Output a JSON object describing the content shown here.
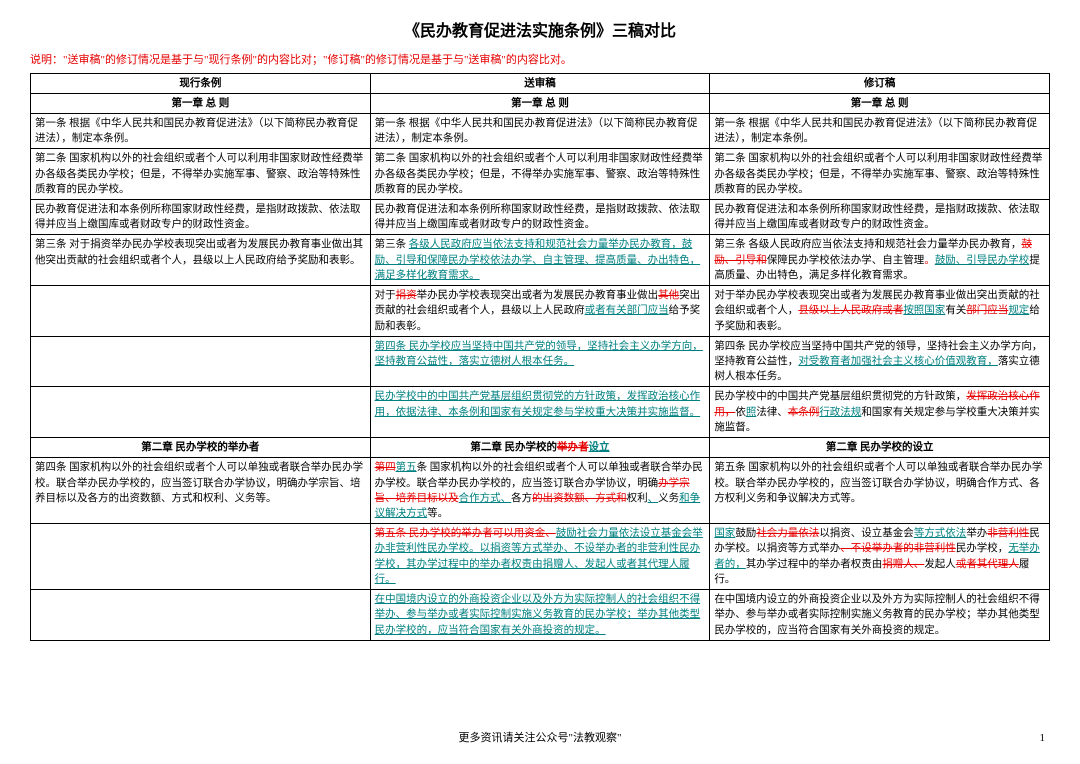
{
  "title": "《民办教育促进法实施条例》三稿对比",
  "note": "说明：\"送审稿\"的修订情况是基于与\"现行条例\"的内容比对；\"修订稿\"的修订情况是基于与\"送审稿\"的内容比对。",
  "headers": {
    "col1": "现行条例",
    "col2": "送审稿",
    "col3": "修订稿"
  },
  "chapter1": "第一章 总 则",
  "rows": {
    "r1c1": "第一条 根据《中华人民共和国民办教育促进法》（以下简称民办教育促进法），制定本条例。",
    "r1c2": "第一条 根据《中华人民共和国民办教育促进法》（以下简称民办教育促进法），制定本条例。",
    "r1c3": "第一条 根据《中华人民共和国民办教育促进法》（以下简称民办教育促进法），制定本条例。",
    "r2c1": "第二条 国家机构以外的社会组织或者个人可以利用非国家财政性经费举办各级各类民办学校；但是，不得举办实施军事、警察、政治等特殊性质教育的民办学校。",
    "r2c2": "第二条 国家机构以外的社会组织或者个人可以利用非国家财政性经费举办各级各类民办学校；但是，不得举办实施军事、警察、政治等特殊性质教育的民办学校。",
    "r2c3": "第二条 国家机构以外的社会组织或者个人可以利用非国家财政性经费举办各级各类民办学校；但是，不得举办实施军事、警察、政治等特殊性质教育的民办学校。",
    "r3c1": "民办教育促进法和本条例所称国家财政性经费，是指财政拨款、依法取得并应当上缴国库或者财政专户的财政性资金。",
    "r3c2": "民办教育促进法和本条例所称国家财政性经费，是指财政拨款、依法取得并应当上缴国库或者财政专户的财政性资金。",
    "r3c3": "民办教育促进法和本条例所称国家财政性经费，是指财政拨款、依法取得并应当上缴国库或者财政专户的财政性资金。",
    "r4c1": "第三条 对于捐资举办民办学校表现突出或者为发展民办教育事业做出其他突出贡献的社会组织或者个人，县级以上人民政府给予奖励和表彰。"
  },
  "chapter2": {
    "col1": "第二章 民办学校的举办者",
    "col3": "第二章 民办学校的设立"
  },
  "r7c1": "第四条 国家机构以外的社会组织或者个人可以单独或者联合举办民办学校。联合举办民办学校的，应当签订联合办学协议，明确办学宗旨、培养目标以及各方的出资数额、方式和权利、义务等。",
  "footer": "更多资讯请关注公众号\"法教观察\"",
  "pagenum": "1"
}
